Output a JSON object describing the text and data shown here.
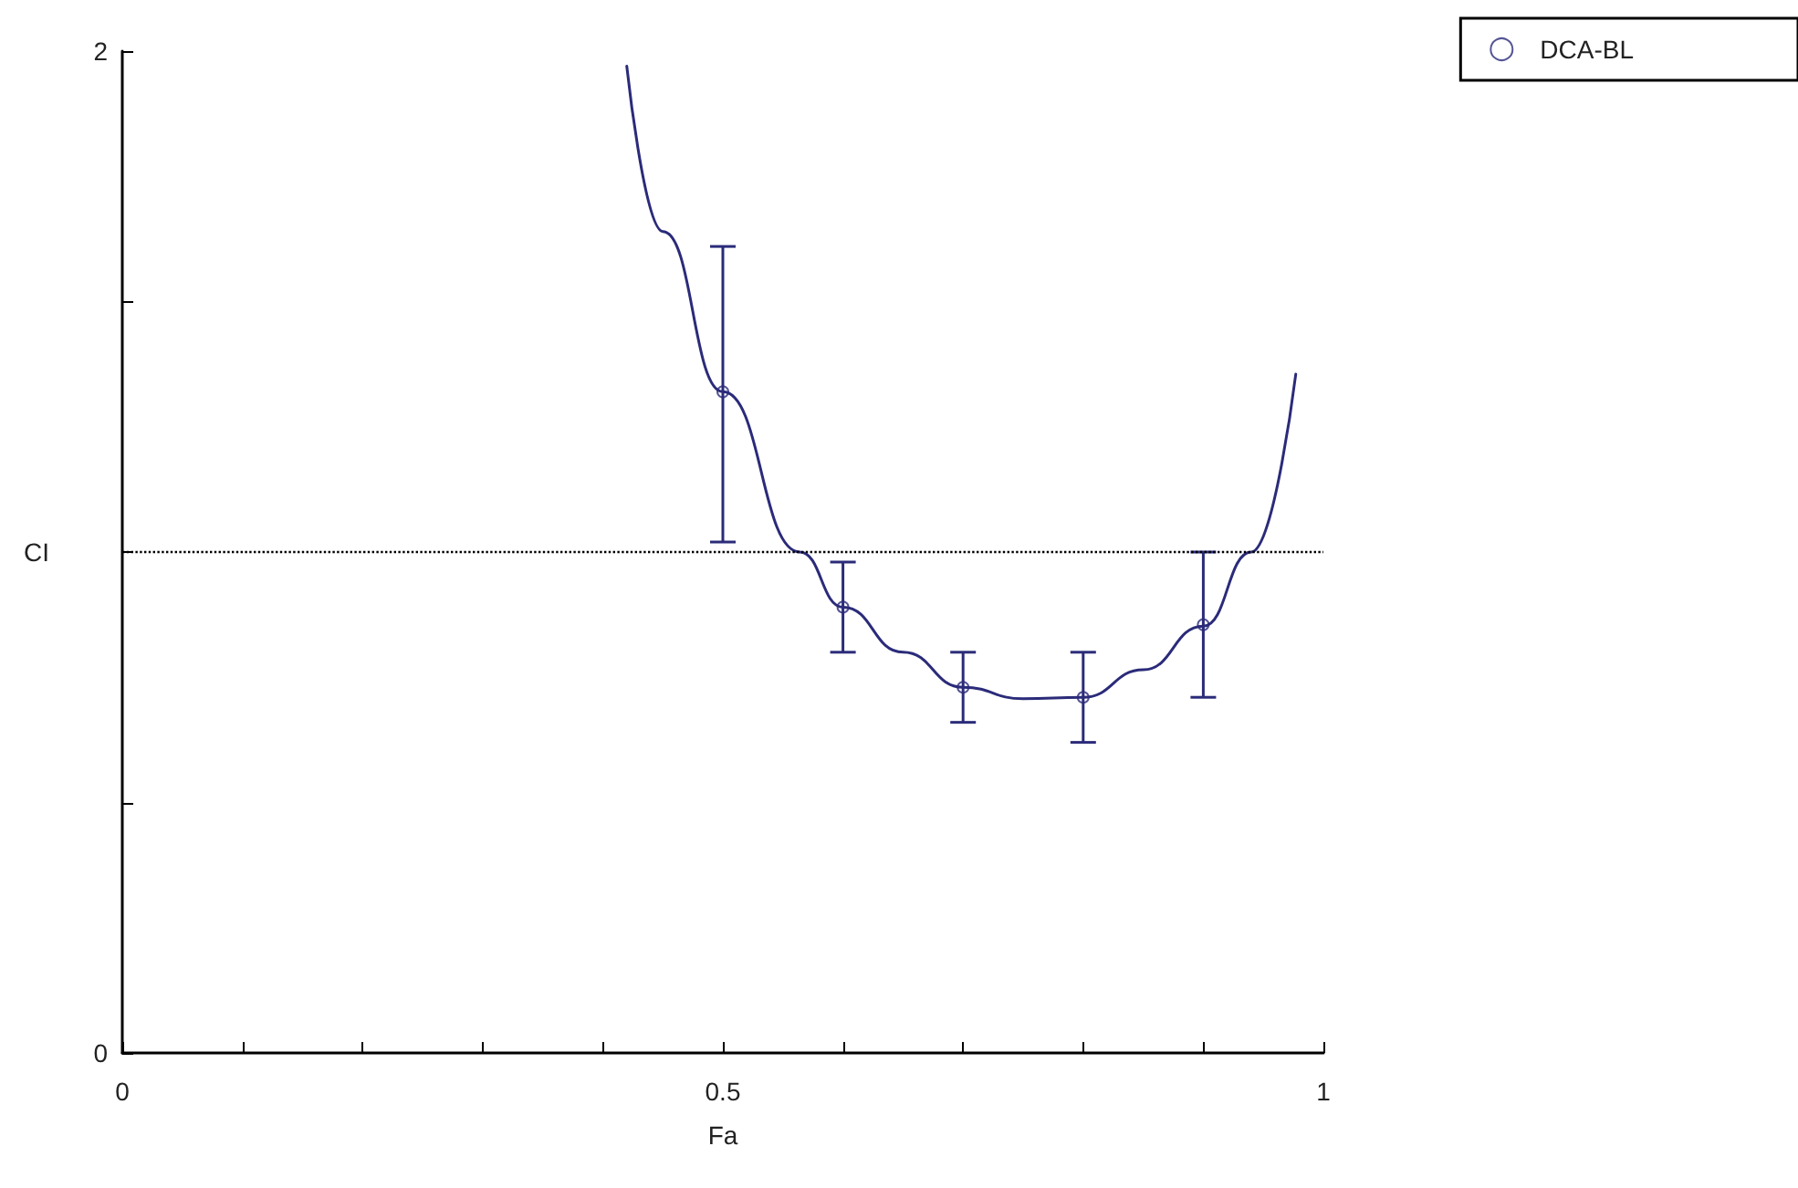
{
  "chart_data": {
    "type": "scatter",
    "xlabel": "Fa",
    "ylabel": "CI",
    "xlim": [
      0,
      1
    ],
    "ylim": [
      0,
      2
    ],
    "xticks": [
      0,
      {
        "value": 0.1,
        "label": null
      },
      {
        "value": 0.2,
        "label": null
      },
      {
        "value": 0.3,
        "label": null
      },
      {
        "value": 0.4,
        "label": null
      },
      0.5,
      {
        "value": 0.6,
        "label": null
      },
      {
        "value": 0.7,
        "label": null
      },
      {
        "value": 0.8,
        "label": null
      },
      {
        "value": 0.9,
        "label": null
      },
      1
    ],
    "yticks": [
      0,
      {
        "value": 0.5,
        "label": null
      },
      {
        "value": 1,
        "label": null
      },
      {
        "value": 1.5,
        "label": null
      },
      2
    ],
    "series": [
      {
        "name": "DCA-BL",
        "color": "#2b2b7a",
        "marker": "circle",
        "x": [
          0.5,
          0.6,
          0.7,
          0.8,
          0.9
        ],
        "values": [
          1.32,
          0.89,
          0.73,
          0.71,
          0.855
        ],
        "errors": [
          [
            1.02,
            1.61
          ],
          [
            0.8,
            0.98
          ],
          [
            0.66,
            0.8
          ],
          [
            0.62,
            0.8
          ],
          [
            0.71,
            1.0
          ]
        ]
      },
      {
        "type": "line",
        "color": "#2b2b7a",
        "marker": "none",
        "line_style": "solid",
        "x": [
          0.42,
          0.45,
          0.5,
          0.564,
          0.6,
          0.65,
          0.7,
          0.75,
          0.8,
          0.85,
          0.9,
          0.94,
          0.977
        ],
        "values": [
          1.97,
          1.64,
          1.32,
          1.0,
          0.89,
          0.8,
          0.73,
          0.707,
          0.71,
          0.765,
          0.852,
          1.0,
          1.355
        ]
      }
    ],
    "ref_lines": [
      {
        "axis": "y",
        "value": 1,
        "label": null,
        "color": "#000000",
        "line_style": "dotted"
      }
    ],
    "grid": false,
    "legend": "top right"
  }
}
